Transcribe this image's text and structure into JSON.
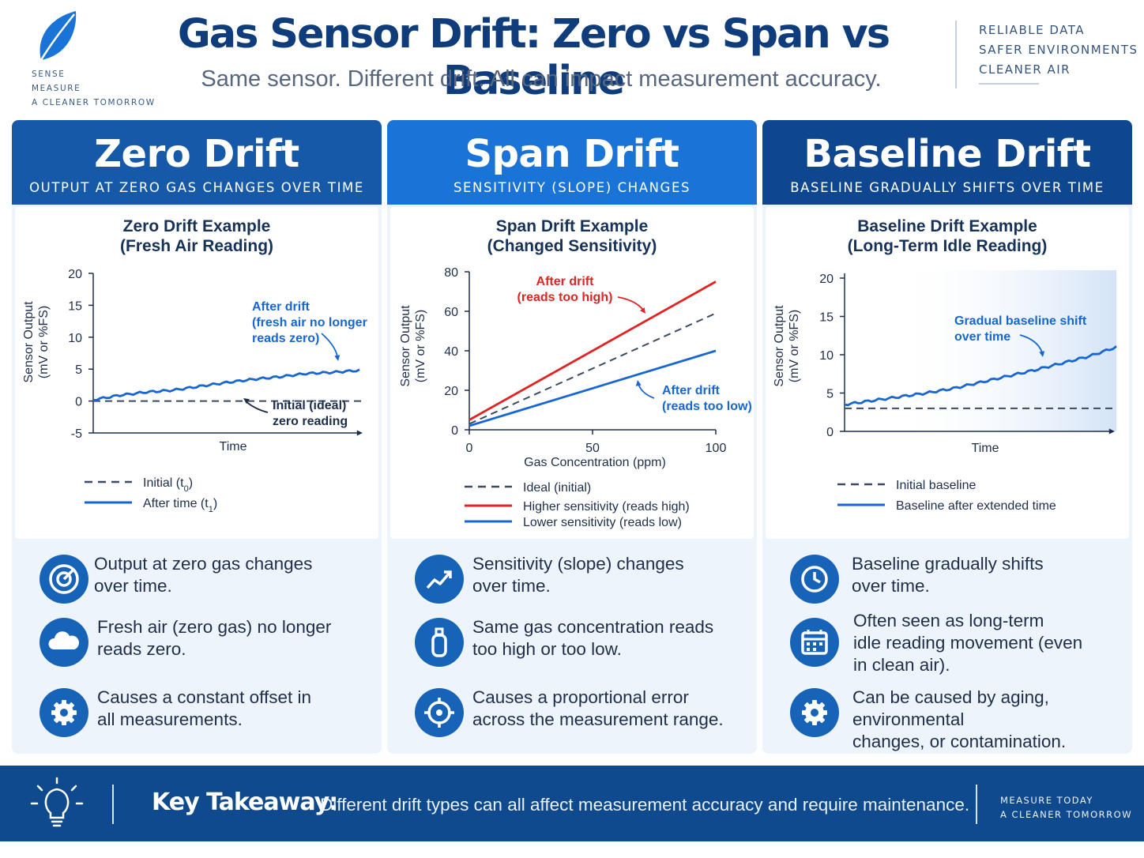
{
  "logo": {
    "icon": "leaf-icon",
    "lines": [
      "SENSE",
      "MEASURE",
      "A CLEANER TOMORROW"
    ]
  },
  "header": {
    "title": "Gas Sensor Drift: Zero vs Span vs Baseline",
    "subtitle": "Same sensor. Different drift. All can impact measurement accuracy.",
    "tagline": [
      "RELIABLE DATA",
      "SAFER ENVIRONMENTS",
      "CLEANER AIR"
    ]
  },
  "colors": {
    "navy": "#104a8e",
    "blue": "#1a73d6",
    "line_blue": "#1766d3",
    "red": "#e02424",
    "dashed": "#3c4a63",
    "panel_bg": "#eef4fb"
  },
  "panels": [
    {
      "key": "zero",
      "heading": "Zero Drift",
      "subheading": "OUTPUT AT ZERO GAS CHANGES OVER TIME",
      "header_color": "#1559a8",
      "chart_title": [
        "Zero Drift Example",
        "(Fresh Air Reading)"
      ],
      "bullets": [
        {
          "icon": "target-icon",
          "text": "Output at zero gas changes\nover time."
        },
        {
          "icon": "cloud-icon",
          "text": "Fresh air (zero gas) no longer\nreads zero."
        },
        {
          "icon": "gear-icon",
          "text": "Causes a constant offset in\nall measurements."
        }
      ]
    },
    {
      "key": "span",
      "heading": "Span Drift",
      "subheading": "SENSITIVITY (SLOPE) CHANGES",
      "header_color": "#1a73d6",
      "chart_title": [
        "Span Drift Example",
        "(Changed Sensitivity)"
      ],
      "bullets": [
        {
          "icon": "trend-up-icon",
          "text": "Sensitivity (slope) changes\nover time."
        },
        {
          "icon": "gas-cylinder-icon",
          "text": "Same gas concentration reads\ntoo high or too low."
        },
        {
          "icon": "crosshair-icon",
          "text": "Causes a proportional error\nacross the measurement range."
        }
      ]
    },
    {
      "key": "baseline",
      "heading": "Baseline Drift",
      "subheading": "BASELINE GRADUALLY SHIFTS OVER TIME",
      "header_color": "#0f4690",
      "chart_title": [
        "Baseline Drift Example",
        "(Long-Term Idle Reading)"
      ],
      "bullets": [
        {
          "icon": "clock-icon",
          "text": "Baseline gradually shifts\nover time."
        },
        {
          "icon": "calendar-icon",
          "text": "Often seen as long-term\nidle reading movement (even\nin clean air)."
        },
        {
          "icon": "gear-icon",
          "text": "Can be caused by aging, environmental\nchanges, or contamination."
        }
      ]
    }
  ],
  "chart_data": [
    {
      "type": "line",
      "ylabel": [
        "Sensor Output",
        "(mV or %FS)"
      ],
      "xlabel": "Time",
      "yticks": [
        20,
        15,
        10,
        5,
        0,
        -5
      ],
      "ylim": [
        -5,
        20
      ],
      "series": [
        {
          "name": "Initial (t0)",
          "style": "dashed",
          "color": "#3c4a63",
          "x": [
            0,
            1
          ],
          "y": [
            0,
            0
          ]
        },
        {
          "name": "After time (t1)",
          "style": "solid",
          "color": "#1766d3",
          "x": [
            0,
            0.1,
            0.2,
            0.3,
            0.4,
            0.5,
            0.6,
            0.7,
            0.8,
            0.9,
            1.0
          ],
          "y": [
            0.2,
            0.9,
            1.4,
            1.7,
            2.3,
            2.9,
            3.4,
            3.8,
            4.3,
            4.5,
            4.8
          ]
        }
      ],
      "annotations": [
        {
          "text": [
            "After drift",
            "(fresh air no longer",
            "reads zero)"
          ],
          "color": "#1766d3"
        },
        {
          "text": [
            "Initial (ideal)",
            "zero reading"
          ],
          "color": "#1e2e4a"
        }
      ],
      "legend": [
        {
          "label": "Initial (t",
          "sub": "0",
          "end": ")",
          "style": "dashed",
          "color": "#3c4a63"
        },
        {
          "label": "After time (t",
          "sub": "1",
          "end": ")",
          "style": "solid",
          "color": "#1766d3"
        }
      ]
    },
    {
      "type": "line",
      "ylabel": [
        "Sensor Output",
        "(mV or %FS)"
      ],
      "xlabel": "Gas Concentration (ppm)",
      "yticks": [
        80,
        60,
        40,
        20,
        0
      ],
      "xticks": [
        0,
        50,
        100
      ],
      "ylim": [
        0,
        80
      ],
      "xlim": [
        0,
        100
      ],
      "series": [
        {
          "name": "Ideal (initial)",
          "style": "dashed",
          "color": "#3c4a63",
          "x": [
            0,
            100
          ],
          "y": [
            3,
            59
          ]
        },
        {
          "name": "Higher sensitivity (reads high)",
          "style": "solid",
          "color": "#e02424",
          "x": [
            0,
            100
          ],
          "y": [
            5,
            75
          ]
        },
        {
          "name": "Lower sensitivity (reads low)",
          "style": "solid",
          "color": "#1766d3",
          "x": [
            0,
            100
          ],
          "y": [
            2,
            40
          ]
        }
      ],
      "annotations": [
        {
          "text": [
            "After drift",
            "(reads too high)"
          ],
          "color": "#e02424"
        },
        {
          "text": [
            "After drift",
            "(reads too low)"
          ],
          "color": "#1766d3"
        }
      ],
      "legend": [
        {
          "label": "Ideal (initial)",
          "style": "dashed",
          "color": "#3c4a63"
        },
        {
          "label": "Higher sensitivity (reads high)",
          "style": "solid",
          "color": "#e02424"
        },
        {
          "label": "Lower sensitivity (reads low)",
          "style": "solid",
          "color": "#1766d3"
        }
      ]
    },
    {
      "type": "line",
      "ylabel": [
        "Sensor Output",
        "(mV or %FS)"
      ],
      "xlabel": "Time",
      "yticks": [
        20,
        15,
        10,
        5,
        0
      ],
      "ylim": [
        0,
        20
      ],
      "series": [
        {
          "name": "Initial baseline",
          "style": "dashed",
          "color": "#3c4a63",
          "x": [
            0,
            1
          ],
          "y": [
            3,
            3
          ]
        },
        {
          "name": "Baseline after extended time",
          "style": "solid",
          "color": "#1766d3",
          "x": [
            0,
            0.1,
            0.2,
            0.3,
            0.4,
            0.5,
            0.6,
            0.7,
            0.8,
            0.9,
            1.0
          ],
          "y": [
            3.5,
            4.0,
            4.5,
            5.0,
            5.6,
            6.4,
            7.2,
            8.0,
            8.9,
            9.8,
            11.0
          ]
        }
      ],
      "annotations": [
        {
          "text": [
            "Gradual baseline shift",
            "over time"
          ],
          "color": "#1766d3"
        }
      ],
      "legend": [
        {
          "label": "Initial baseline",
          "style": "dashed",
          "color": "#3c4a63"
        },
        {
          "label": "Baseline after extended time",
          "style": "solid",
          "color": "#1766d3"
        }
      ]
    }
  ],
  "footer": {
    "icon": "lightbulb-icon",
    "label": "Key Takeaway:",
    "text": "Different drift types can all affect measurement accuracy and require maintenance.",
    "tagline": [
      "MEASURE TODAY",
      "A CLEANER TOMORROW"
    ]
  }
}
